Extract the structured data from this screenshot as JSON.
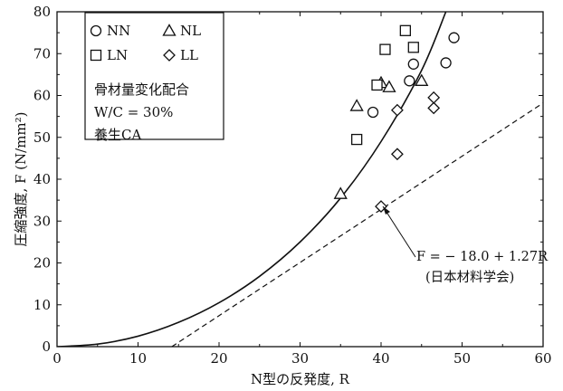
{
  "chart_data": {
    "type": "scatter",
    "xlabel": "N型の反発度, R",
    "ylabel": "圧縮強度, F (N/mm²)",
    "xlim": [
      0,
      60
    ],
    "ylim": [
      0,
      80
    ],
    "xticks": [
      "0",
      "10",
      "20",
      "30",
      "40",
      "50",
      "60"
    ],
    "yticks": [
      "0",
      "10",
      "20",
      "30",
      "40",
      "50",
      "60",
      "70",
      "80"
    ],
    "grid": false,
    "legend_position": "top-left",
    "series": [
      {
        "name": "NN",
        "marker": "circle",
        "points": [
          [
            39,
            56
          ],
          [
            43.5,
            63.5
          ],
          [
            44,
            67.5
          ],
          [
            48,
            67.8
          ],
          [
            49,
            73.8
          ]
        ]
      },
      {
        "name": "NL",
        "marker": "triangle",
        "points": [
          [
            35,
            36.5
          ],
          [
            37,
            57.5
          ],
          [
            40,
            63
          ],
          [
            41,
            62
          ],
          [
            45,
            63.5
          ]
        ]
      },
      {
        "name": "LN",
        "marker": "square",
        "points": [
          [
            37,
            49.5
          ],
          [
            39.5,
            62.5
          ],
          [
            40.5,
            71
          ],
          [
            43,
            75.5
          ],
          [
            44,
            71.5
          ]
        ]
      },
      {
        "name": "LL",
        "marker": "diamond",
        "points": [
          [
            40,
            33.5
          ],
          [
            42,
            46
          ],
          [
            42,
            56.5
          ],
          [
            46.5,
            57
          ],
          [
            46.5,
            59.5
          ]
        ]
      }
    ],
    "curves": [
      {
        "style": "solid",
        "kind": "fit-curve",
        "points": [
          [
            0,
            0
          ],
          [
            5,
            0.6
          ],
          [
            10,
            2.5
          ],
          [
            15,
            5.8
          ],
          [
            20,
            10.5
          ],
          [
            25,
            16.8
          ],
          [
            30,
            25
          ],
          [
            35,
            35.5
          ],
          [
            40,
            49
          ],
          [
            45,
            66
          ],
          [
            48,
            80
          ]
        ]
      },
      {
        "style": "dashed",
        "kind": "line",
        "intercept": -18.0,
        "slope": 1.27
      }
    ],
    "note_lines": [
      "骨材量変化配合",
      "W/C = 30%",
      "養生CA"
    ],
    "annotation_lines": [
      "F = − 18.0 + 1.27R",
      "(日本材料学会)"
    ],
    "colors": {
      "ink": "#111111",
      "background": "#ffffff"
    }
  }
}
